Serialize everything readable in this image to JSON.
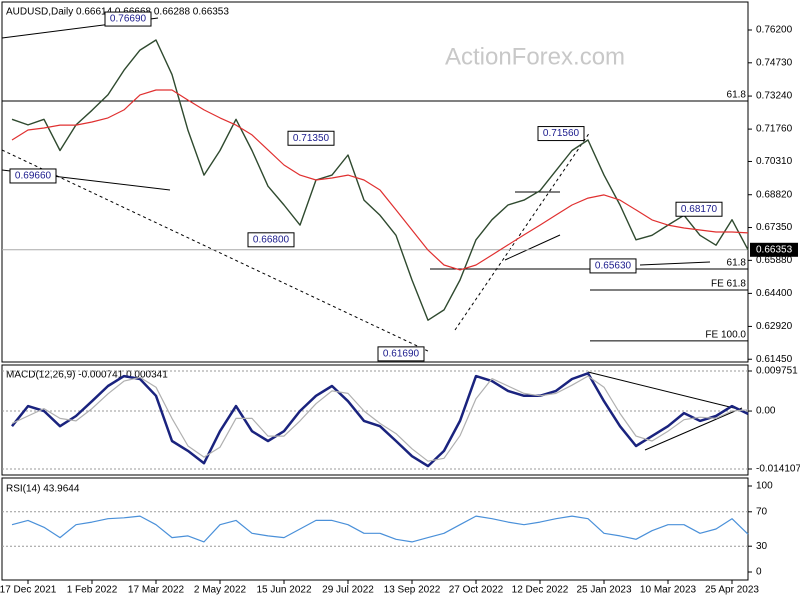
{
  "chart_data": [
    {
      "type": "line",
      "title": "AUDUSD,Daily 0.66614 0.66668 0.66288 0.66353",
      "watermark": "ActionForex.com",
      "ylim": [
        0.61326,
        0.77454
      ],
      "yticks": [
        {
          "value": 0.762,
          "label": "0.76200"
        },
        {
          "value": 0.7473,
          "label": "0.74730"
        },
        {
          "value": 0.7324,
          "label": "0.73240"
        },
        {
          "value": 0.7176,
          "label": "0.71760"
        },
        {
          "value": 0.7031,
          "label": "0.70310"
        },
        {
          "value": 0.6882,
          "label": "0.68820"
        },
        {
          "value": 0.6735,
          "label": "0.67350"
        },
        {
          "value": 0.6588,
          "label": "0.65880"
        },
        {
          "value": 0.644,
          "label": "0.64400"
        },
        {
          "value": 0.6292,
          "label": "0.62920"
        },
        {
          "value": 0.6145,
          "label": "0.61450"
        }
      ],
      "series": [
        {
          "color": "#2f4a2f",
          "values": [
            0.722,
            0.7195,
            0.722,
            0.708,
            0.7195,
            0.726,
            0.733,
            0.744,
            0.753,
            0.7575,
            0.742,
            0.717,
            0.697,
            0.708,
            0.722,
            0.708,
            0.692,
            0.6836,
            0.6746,
            0.6948,
            0.697,
            0.706,
            0.6858,
            0.679,
            0.67,
            0.65,
            0.632,
            0.6366,
            0.65,
            0.668,
            0.677,
            0.6836,
            0.6858,
            0.69,
            0.699,
            0.708,
            0.7127,
            0.697,
            0.6836,
            0.668,
            0.67,
            0.6746,
            0.679,
            0.67,
            0.6656,
            0.677,
            0.66353
          ]
        },
        {
          "color": "#e03030",
          "values": [
            0.7127,
            0.7172,
            0.7181,
            0.7194,
            0.7194,
            0.7208,
            0.7226,
            0.7262,
            0.7329,
            0.7351,
            0.7351,
            0.7306,
            0.7262,
            0.7226,
            0.7194,
            0.715,
            0.7083,
            0.7015,
            0.697,
            0.6948,
            0.6957,
            0.697,
            0.6948,
            0.6903,
            0.6814,
            0.6724,
            0.6634,
            0.6567,
            0.6545,
            0.6567,
            0.6612,
            0.6657,
            0.6702,
            0.6746,
            0.6791,
            0.6836,
            0.6867,
            0.6881,
            0.6858,
            0.6814,
            0.6769,
            0.6746,
            0.6733,
            0.6724,
            0.6715,
            0.6715,
            0.6711
          ]
        }
      ],
      "annotations": [
        {
          "label": "0.76690",
          "value": 0.7669
        },
        {
          "label": "0.69660",
          "value": 0.6966
        },
        {
          "label": "0.71350",
          "value": 0.7135
        },
        {
          "label": "0.66800",
          "value": 0.668
        },
        {
          "label": "0.61690",
          "value": 0.6169
        },
        {
          "label": "0.71560",
          "value": 0.7156
        },
        {
          "label": "0.68170",
          "value": 0.6817
        },
        {
          "label": "0.65630",
          "value": 0.6563
        }
      ],
      "levels": [
        {
          "label": "61.8",
          "value": 0.7302
        },
        {
          "label": "61.8",
          "value": 0.6549
        },
        {
          "label": "FE 61.8",
          "value": 0.6455
        },
        {
          "label": "FE 100.0",
          "value": 0.6227
        }
      ],
      "last_price": {
        "label": "0.66353",
        "value": 0.66353
      }
    },
    {
      "type": "line",
      "title": "MACD(12,26,9) -0.000741 0.000341",
      "ylim": [
        -0.01557,
        0.01121
      ],
      "yticks": [
        0.009751,
        {
          "value": 0,
          "label": "0.00"
        },
        -0.014107
      ],
      "series": [
        {
          "color": "#1a237e",
          "values": [
            -0.0037,
            0.0012,
            0,
            -0.0037,
            -0.0012,
            0.0024,
            0.0061,
            0.0085,
            0.0078,
            0.0037,
            -0.0073,
            -0.0097,
            -0.0127,
            -0.0049,
            0.0012,
            -0.0049,
            -0.0073,
            -0.0049,
            0,
            0.0037,
            0.0061,
            0.0024,
            -0.0024,
            -0.0037,
            -0.0073,
            -0.011,
            -0.0134,
            -0.0097,
            -0.0024,
            0.0085,
            0.0073,
            0.0049,
            0.0037,
            0.0037,
            0.0049,
            0.0078,
            0.0092,
            0.0024,
            -0.0037,
            -0.0085,
            -0.0061,
            -0.0037,
            -0.0005,
            -0.0024,
            -0.0012,
            0.0012,
            -0.0007
          ]
        },
        {
          "color": "#b0b0b0",
          "values": [
            -0.003,
            -0.0012,
            0.0006,
            -0.0018,
            -0.0024,
            0.0006,
            0.0042,
            0.0073,
            0.0082,
            0.0058,
            -0.0018,
            -0.0085,
            -0.0112,
            -0.0088,
            -0.0018,
            -0.0018,
            -0.0061,
            -0.0061,
            -0.0024,
            0.0018,
            0.0049,
            0.0043,
            0,
            -0.003,
            -0.0055,
            -0.0092,
            -0.0122,
            -0.0115,
            -0.006,
            0.003,
            0.0079,
            0.0061,
            0.0043,
            0.0037,
            0.0043,
            0.0063,
            0.0085,
            0.0058,
            -0.0006,
            -0.0061,
            -0.0073,
            -0.0049,
            -0.0021,
            -0.0015,
            -0.0018,
            0,
            0.0003
          ]
        }
      ]
    },
    {
      "type": "line",
      "title": "RSI(14) 43.9644",
      "ylim": [
        -9.3,
        109.3
      ],
      "yticks": [
        100,
        70,
        30,
        0
      ],
      "series": [
        {
          "color": "#4a90d9",
          "values": [
            55,
            60,
            52,
            40,
            55,
            58,
            62,
            63,
            65,
            55,
            40,
            42,
            35,
            55,
            60,
            45,
            42,
            40,
            50,
            60,
            60,
            55,
            45,
            45,
            38,
            35,
            40,
            45,
            55,
            65,
            62,
            58,
            55,
            58,
            62,
            65,
            62,
            45,
            42,
            38,
            48,
            55,
            55,
            45,
            50,
            62,
            44
          ]
        }
      ],
      "categories": [
        null,
        "17 Dec 2021",
        null,
        null,
        null,
        "1 Feb 2022",
        null,
        null,
        null,
        "17 Mar 2022",
        null,
        null,
        null,
        "2 May 2022",
        null,
        null,
        null,
        "15 Jun 2022",
        null,
        null,
        null,
        "29 Jul 2022",
        null,
        null,
        null,
        "13 Sep 2022",
        null,
        null,
        null,
        "27 Oct 2022",
        null,
        null,
        null,
        "12 Dec 2022",
        null,
        null,
        null,
        "25 Jan 2023",
        null,
        null,
        null,
        "10 Mar 2023",
        null,
        null,
        null,
        "25 Apr 2023",
        null
      ]
    }
  ]
}
